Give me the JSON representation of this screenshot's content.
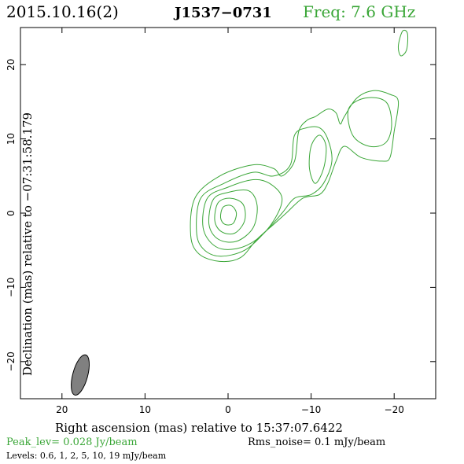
{
  "header": {
    "date": "2015.10.16(2)",
    "source": "J1537−0731",
    "freq": "Freq: 7.6 GHz"
  },
  "colors": {
    "contour": "#3aa637",
    "beam": "#808080",
    "freq_text": "#3aa637"
  },
  "chart_data": {
    "type": "contour",
    "xlabel": "Right ascension (mas) relative to 15:37:07.6422",
    "ylabel": "Declination (mas) relative to −07:31:58.179",
    "xlim": [
      25,
      -25
    ],
    "ylim": [
      -25,
      25
    ],
    "xticks": [
      20,
      10,
      0,
      -10,
      -20
    ],
    "xtick_labels": [
      "20",
      "10",
      "0",
      "−10",
      "−20"
    ],
    "yticks": [
      20,
      10,
      0,
      -10,
      -20
    ],
    "ytick_labels": [
      "20",
      "10",
      "0",
      "−10",
      "−20"
    ],
    "peak_level": "Peak_lev=  0.028 Jy/beam",
    "rms_noise": "Rms_noise=   0.1 mJy/beam",
    "levels_text": "Levels: 0.6,    1,    2,    5,   10,   19  mJy/beam",
    "levels_mJy": [
      0.6,
      1,
      2,
      5,
      10,
      19
    ],
    "contours": [
      {
        "level_mJy": 0.6,
        "points": [
          [
            4.5,
            -3
          ],
          [
            4,
            2
          ],
          [
            1,
            5
          ],
          [
            -3,
            6.5
          ],
          [
            -5.5,
            6
          ],
          [
            -6.5,
            5
          ],
          [
            -8,
            7
          ],
          [
            -8.5,
            11
          ],
          [
            -9.5,
            12.5
          ],
          [
            -10.5,
            13
          ],
          [
            -12,
            14
          ],
          [
            -13,
            13.5
          ],
          [
            -13.5,
            12
          ],
          [
            -14,
            13
          ],
          [
            -15.5,
            15.5
          ],
          [
            -17.5,
            16.5
          ],
          [
            -19.5,
            16
          ],
          [
            -20.5,
            15
          ],
          [
            -20,
            11
          ],
          [
            -19.5,
            7.5
          ],
          [
            -18.5,
            7
          ],
          [
            -16,
            7.5
          ],
          [
            -14,
            9
          ],
          [
            -13,
            7
          ],
          [
            -12,
            4
          ],
          [
            -11,
            2.5
          ],
          [
            -9,
            2
          ],
          [
            -7,
            0
          ],
          [
            -5.5,
            -1.5
          ],
          [
            -3.5,
            -3.5
          ],
          [
            -1.5,
            -6
          ],
          [
            1,
            -6.5
          ],
          [
            3.5,
            -5.5
          ]
        ]
      },
      {
        "level_mJy": 0.6,
        "points": [
          [
            -21,
            24.5
          ],
          [
            -21.6,
            24.2
          ],
          [
            -21.5,
            22
          ],
          [
            -20.8,
            21.2
          ],
          [
            -20.5,
            22.5
          ]
        ]
      },
      {
        "level_mJy": 1,
        "points": [
          [
            3.8,
            -2.5
          ],
          [
            3.3,
            2
          ],
          [
            0.5,
            4
          ],
          [
            -3,
            5.5
          ],
          [
            -5.5,
            5
          ],
          [
            -7.5,
            6.5
          ],
          [
            -8,
            10.5
          ],
          [
            -9.5,
            11.5
          ],
          [
            -11,
            11.5
          ],
          [
            -12,
            10
          ],
          [
            -12.5,
            7
          ],
          [
            -11.5,
            4
          ],
          [
            -10,
            2.5
          ],
          [
            -8,
            2
          ],
          [
            -6.5,
            0
          ],
          [
            -4.5,
            -2.5
          ],
          [
            -2,
            -5
          ],
          [
            1,
            -5.8
          ],
          [
            3,
            -4.8
          ]
        ]
      },
      {
        "level_mJy": 1,
        "points": [
          [
            -14.5,
            14
          ],
          [
            -16.5,
            15.5
          ],
          [
            -19,
            15
          ],
          [
            -19.7,
            12
          ],
          [
            -19,
            9.5
          ],
          [
            -17,
            9
          ],
          [
            -15,
            10.5
          ]
        ]
      },
      {
        "level_mJy": 2,
        "points": [
          [
            3,
            -2
          ],
          [
            2.5,
            2
          ],
          [
            0,
            3.5
          ],
          [
            -3,
            4.5
          ],
          [
            -5,
            4
          ],
          [
            -6.5,
            2
          ],
          [
            -5.5,
            -1
          ],
          [
            -3.5,
            -3.5
          ],
          [
            -1,
            -4.8
          ],
          [
            1.5,
            -4.5
          ]
        ]
      },
      {
        "level_mJy": 2,
        "points": [
          [
            -10,
            9
          ],
          [
            -11,
            10.5
          ],
          [
            -11.8,
            9
          ],
          [
            -11.5,
            6
          ],
          [
            -10.5,
            4
          ],
          [
            -9.8,
            6
          ]
        ]
      },
      {
        "level_mJy": 5,
        "points": [
          [
            2.3,
            -1.5
          ],
          [
            1.8,
            1.8
          ],
          [
            0,
            2.8
          ],
          [
            -2.5,
            3
          ],
          [
            -3.5,
            1
          ],
          [
            -3,
            -2
          ],
          [
            -1,
            -3.8
          ],
          [
            1.2,
            -3.5
          ]
        ]
      },
      {
        "level_mJy": 10,
        "points": [
          [
            1.6,
            -1
          ],
          [
            1.2,
            1.4
          ],
          [
            -0.3,
            2
          ],
          [
            -1.8,
            1.2
          ],
          [
            -2,
            -1
          ],
          [
            -0.8,
            -2.7
          ],
          [
            0.8,
            -2.5
          ]
        ]
      },
      {
        "level_mJy": 19,
        "points": [
          [
            0.9,
            -0.6
          ],
          [
            0.6,
            0.8
          ],
          [
            -0.4,
            1
          ],
          [
            -1,
            0
          ],
          [
            -0.6,
            -1.4
          ],
          [
            0.4,
            -1.5
          ]
        ]
      }
    ],
    "beam": {
      "x": 17.8,
      "y": -21.8,
      "major_mas": 5.6,
      "minor_mas": 1.8,
      "pa_deg": 15
    }
  }
}
